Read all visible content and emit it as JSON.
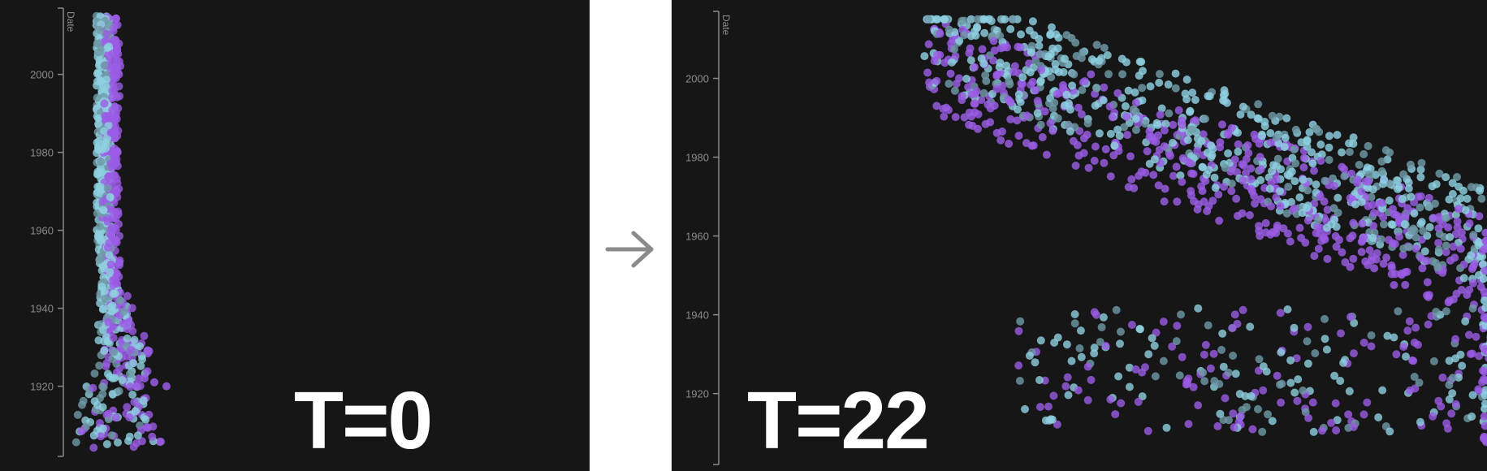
{
  "labels": {
    "left": "T=0",
    "right": "T=22"
  },
  "colors": {
    "background": "#161617",
    "divider": "#ffffff",
    "axis": "#8a8a8a",
    "cyan": "#8ecfe0",
    "teal": "#6f9aa6",
    "purple": "#9b5de5",
    "label": "#ffffff",
    "arrow": "#8a8a8a"
  },
  "chart_data": [
    {
      "type": "scatter",
      "title": "",
      "ylabel": "Date",
      "xlabel": "",
      "y_ticks": [
        1920,
        1940,
        1960,
        1980,
        2000
      ],
      "ylim": [
        1902,
        2017
      ],
      "legend": "none",
      "series_note_colors": [
        "cyan",
        "purple"
      ],
      "state": "T=0"
    },
    {
      "type": "scatter",
      "title": "",
      "ylabel": "Date",
      "xlabel": "",
      "y_ticks": [
        1920,
        1940,
        1960,
        1980,
        2000
      ],
      "ylim": [
        1902,
        2017
      ],
      "legend": "none",
      "series_note_colors": [
        "cyan",
        "purple"
      ],
      "state": "T=22"
    }
  ]
}
